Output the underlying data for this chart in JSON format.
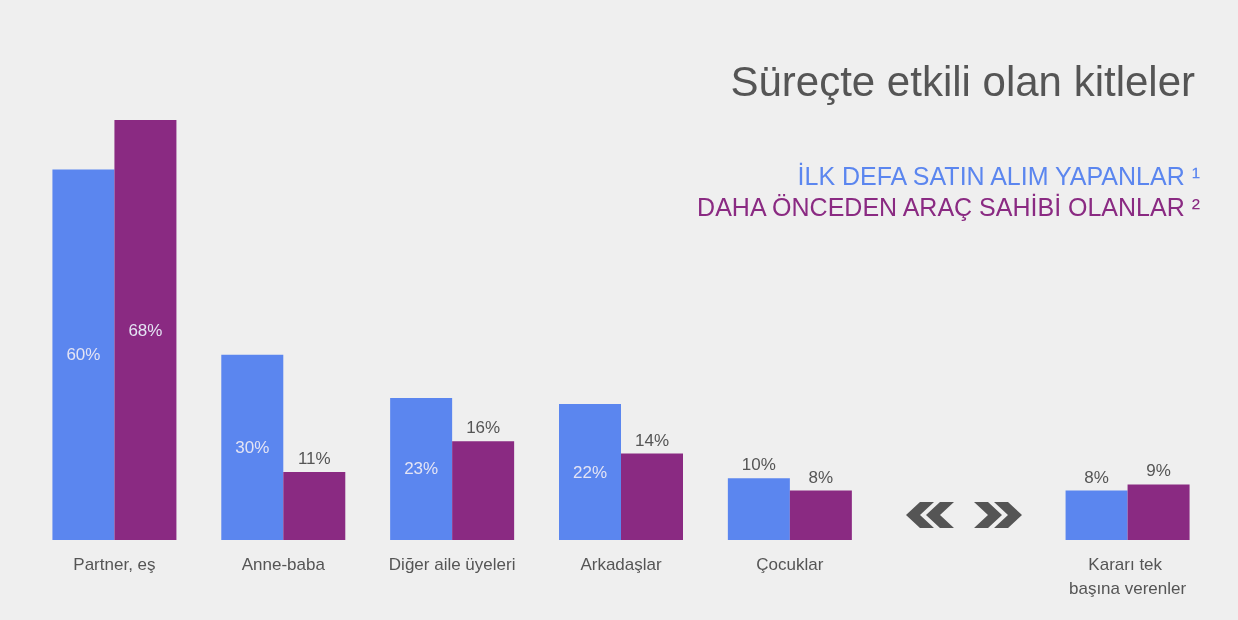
{
  "chart_data": {
    "type": "bar",
    "title": "Süreçte etkili olan kitleler",
    "categories": [
      "Partner, eş",
      "Anne-baba",
      "Diğer aile üyeleri",
      "Arkadaşlar",
      "Çocuklar",
      null,
      "Kararı tek başına verenler"
    ],
    "series": [
      {
        "name": "İLK DEFA SATIN ALIM YAPANLAR ¹",
        "color": "#5b86ef",
        "values": [
          60,
          30,
          23,
          22,
          10,
          null,
          8
        ],
        "value_labels": [
          "60%",
          "30%",
          "23%",
          "22%",
          "10%",
          null,
          "8%"
        ]
      },
      {
        "name": "DAHA ÖNCEDEN ARAÇ SAHİBİ OLANLAR ²",
        "color": "#8a2a82",
        "values": [
          68,
          11,
          16,
          14,
          8,
          null,
          9
        ],
        "value_labels": [
          "68%",
          "11%",
          "16%",
          "14%",
          "8%",
          null,
          "9%"
        ]
      }
    ],
    "legend": "top right",
    "grid": false
  }
}
